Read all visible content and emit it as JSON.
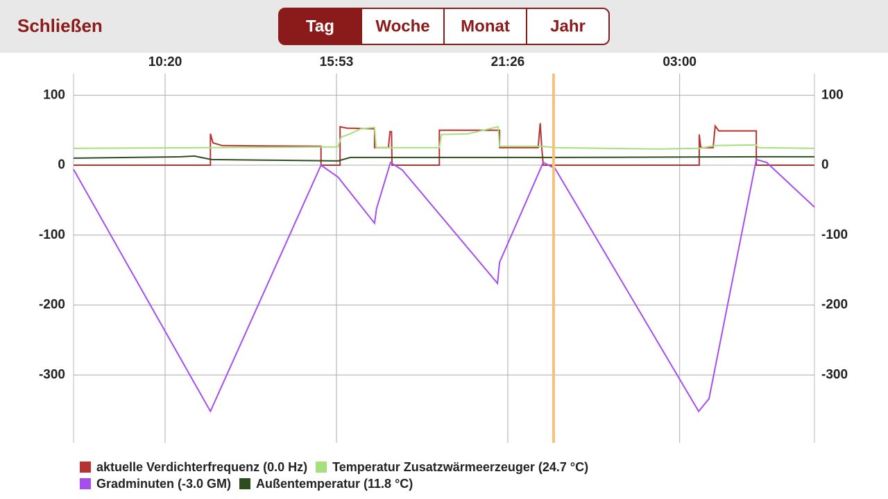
{
  "header": {
    "close": "Schließen",
    "tabs": [
      "Tag",
      "Woche",
      "Monat",
      "Jahr"
    ],
    "selected_tab": 0
  },
  "chart_data": {
    "type": "line",
    "xlim": [
      442,
      1882
    ],
    "xticks": [
      {
        "value": 620,
        "label": "10:20"
      },
      {
        "value": 953,
        "label": "15:53"
      },
      {
        "value": 1286,
        "label": "21:26"
      },
      {
        "value": 1620,
        "label": "03:00"
      }
    ],
    "ylim": [
      -397,
      131
    ],
    "yticks": [
      -300,
      -200,
      -100,
      0,
      100
    ],
    "grid": true,
    "cursor_x": 1375,
    "cursor_color": "#f5c27a",
    "series": [
      {
        "name": "aktuelle Verdichterfrequenz (0.0 Hz)",
        "color": "#b83232",
        "x": [
          442,
          708,
          708,
          713,
          731,
          923,
          923,
          960,
          960,
          973,
          1027,
          1027,
          1054,
          1057,
          1060,
          1061,
          1153,
          1153,
          1270,
          1270,
          1345,
          1349,
          1352,
          1355,
          1658,
          1658,
          1661,
          1685,
          1689,
          1696,
          1769,
          1769,
          1882
        ],
        "values": [
          0,
          0,
          45,
          32,
          28,
          27,
          0,
          0,
          55,
          53,
          52,
          25,
          25,
          48,
          48,
          0,
          0,
          50,
          50,
          25,
          25,
          60,
          25,
          0,
          0,
          44,
          25,
          25,
          56,
          49,
          49,
          0,
          0
        ]
      },
      {
        "name": "Temperatur Zusatzwärmeerzeuger (24.7 °C)",
        "color": "#a6e07a",
        "x": [
          442,
          923,
          956,
          962,
          980,
          1000,
          1027,
          1030,
          1058,
          1153,
          1157,
          1209,
          1267,
          1270,
          1351,
          1378,
          1580,
          1658,
          1688,
          1769,
          1773,
          1882
        ],
        "values": [
          24,
          26,
          26,
          40,
          45,
          52,
          54,
          25,
          25,
          25,
          44,
          45,
          55,
          27,
          27,
          25,
          23,
          24,
          28,
          29,
          25,
          24
        ]
      },
      {
        "name": "Gradminuten (-3.0 GM)",
        "color": "#a64df0",
        "x": [
          442,
          708,
          923,
          956,
          1027,
          1031,
          1058,
          1081,
          1266,
          1270,
          1355,
          1378,
          1657,
          1677,
          1769,
          1789,
          1882
        ],
        "values": [
          -6,
          -352,
          0,
          -17,
          -83,
          -62,
          4,
          -7,
          -169,
          -139,
          4,
          -5,
          -352,
          -334,
          8,
          4,
          -60
        ]
      },
      {
        "name": "Außentemperatur (11.8 °C)",
        "color": "#2e4d1f",
        "x": [
          442,
          650,
          677,
          710,
          838,
          956,
          980,
          1378,
          1782,
          1882
        ],
        "values": [
          10,
          12,
          13,
          8,
          7,
          6,
          11,
          11,
          12,
          12
        ]
      }
    ]
  }
}
